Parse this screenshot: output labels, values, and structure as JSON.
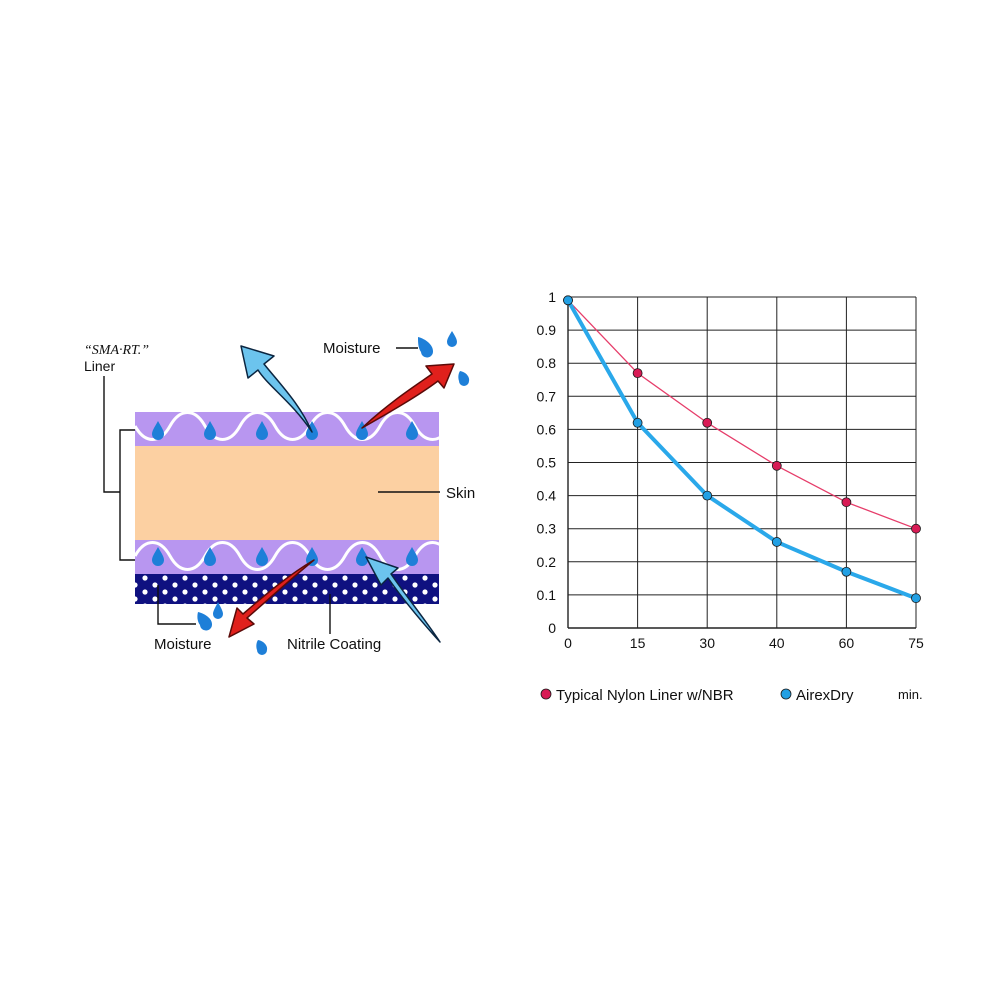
{
  "diagram": {
    "labels": {
      "smart_liner_brand": "“SMA·RT.”",
      "smart_liner_word": "Liner",
      "moisture_top": "Moisture",
      "skin": "Skin",
      "moisture_bottom": "Moisture",
      "nitrile_coating": "Nitrile Coating"
    },
    "colors": {
      "liner": "#b896f0",
      "skin": "#fcd0a2",
      "nitrile": "#0f1180",
      "drop": "#1e7fd8",
      "arrow_red": "#e0201c",
      "arrow_blue": "#6cc4ee"
    }
  },
  "chart_data": {
    "type": "line",
    "categories": [
      "0",
      "15",
      "30",
      "40",
      "60",
      "75"
    ],
    "y_ticks": [
      "0",
      "0.1",
      "0.2",
      "0.3",
      "0.4",
      "0.5",
      "0.6",
      "0.7",
      "0.8",
      "0.9",
      "1"
    ],
    "ylim": [
      0,
      1
    ],
    "grid": true,
    "x_unit": "min.",
    "legend_position": "bottom",
    "series": [
      {
        "name": "Typical Nylon Liner w/NBR",
        "color": "#e63d6a",
        "marker": "#d81b55",
        "values": [
          0.99,
          0.77,
          0.62,
          0.49,
          0.38,
          0.3
        ]
      },
      {
        "name": "AirexDry",
        "color": "#2aa8ea",
        "marker": "#22a0e4",
        "values": [
          0.99,
          0.62,
          0.4,
          0.26,
          0.17,
          0.09
        ]
      }
    ]
  }
}
